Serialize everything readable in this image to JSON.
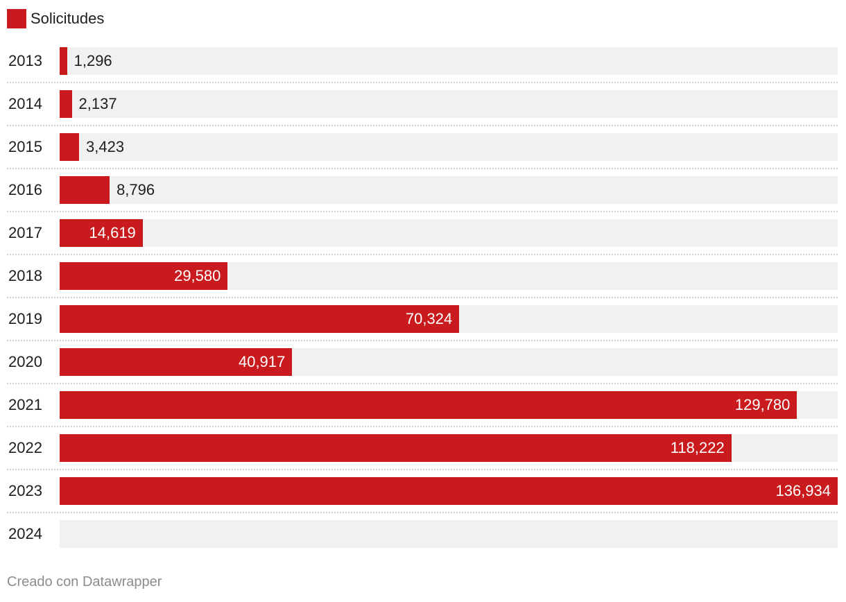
{
  "legend": {
    "label": "Solicitudes",
    "color": "#c91b1e"
  },
  "chart_data": {
    "type": "bar",
    "orientation": "horizontal",
    "categories": [
      "2013",
      "2014",
      "2015",
      "2016",
      "2017",
      "2018",
      "2019",
      "2020",
      "2021",
      "2022",
      "2023",
      "2024"
    ],
    "series": [
      {
        "name": "Solicitudes",
        "values": [
          1296,
          2137,
          3423,
          8796,
          14619,
          29580,
          70324,
          40917,
          129780,
          118222,
          136934,
          null
        ],
        "labels": [
          "1,296",
          "2,137",
          "3,423",
          "8,796",
          "14,619",
          "29,580",
          "70,324",
          "40,917",
          "129,780",
          "118,222",
          "136,934",
          ""
        ]
      }
    ],
    "xlim": [
      0,
      136934
    ],
    "bar_color": "#c91b1e",
    "track_color": "#f1f1f1",
    "legend_position": "top-left",
    "grid": false
  },
  "footer": {
    "credit": "Creado con Datawrapper"
  }
}
